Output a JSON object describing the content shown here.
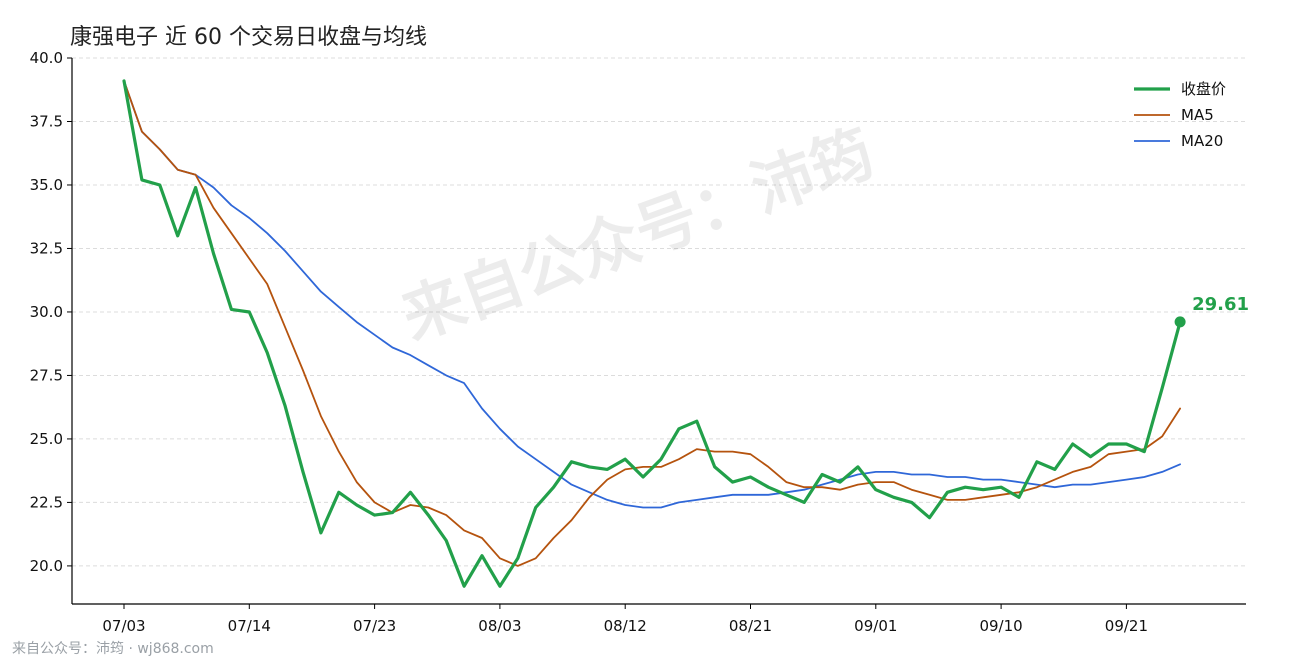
{
  "chart_data": {
    "type": "line",
    "title": "康强电子 近 60 个交易日收盘与均线",
    "xlabel": "",
    "ylabel": "",
    "ylim": [
      18.5,
      40.0
    ],
    "yticks": [
      20.0,
      22.5,
      25.0,
      27.5,
      30.0,
      32.5,
      35.0,
      37.5,
      40.0
    ],
    "ytick_labels": [
      "20.0",
      "22.5",
      "25.0",
      "27.5",
      "30.0",
      "32.5",
      "35.0",
      "37.5",
      "40.0"
    ],
    "xticks": [
      {
        "index": 0,
        "label": "07/03"
      },
      {
        "index": 7,
        "label": "07/14"
      },
      {
        "index": 14,
        "label": "07/23"
      },
      {
        "index": 21,
        "label": "08/03"
      },
      {
        "index": 28,
        "label": "08/12"
      },
      {
        "index": 35,
        "label": "08/21"
      },
      {
        "index": 42,
        "label": "09/01"
      },
      {
        "index": 49,
        "label": "09/10"
      },
      {
        "index": 56,
        "label": "09/21"
      }
    ],
    "grid": "horizontal-dashed",
    "legend_position": "top-right",
    "series": [
      {
        "name": "收盘价",
        "color": "#22a04a",
        "values": [
          39.1,
          35.2,
          35.0,
          33.0,
          34.9,
          32.3,
          30.1,
          30.0,
          28.4,
          26.3,
          23.7,
          21.3,
          22.9,
          22.4,
          22.0,
          22.1,
          22.9,
          22.0,
          21.0,
          19.2,
          20.4,
          19.2,
          20.3,
          22.3,
          23.1,
          24.1,
          23.9,
          23.8,
          24.2,
          23.5,
          24.2,
          25.4,
          25.7,
          23.9,
          23.3,
          23.5,
          23.1,
          22.8,
          22.5,
          23.6,
          23.3,
          23.9,
          23.0,
          22.7,
          22.5,
          21.9,
          22.9,
          23.1,
          23.0,
          23.1,
          22.7,
          24.1,
          23.8,
          24.8,
          24.3,
          24.8,
          24.8,
          24.5,
          27.0,
          29.61
        ]
      },
      {
        "name": "MA5",
        "color": "#b5530e",
        "values": [
          39.1,
          37.1,
          36.4,
          35.6,
          35.4,
          34.1,
          33.1,
          32.1,
          31.1,
          29.4,
          27.7,
          25.9,
          24.5,
          23.3,
          22.5,
          22.1,
          22.4,
          22.3,
          22.0,
          21.4,
          21.1,
          20.3,
          20.0,
          20.3,
          21.1,
          21.8,
          22.7,
          23.4,
          23.8,
          23.9,
          23.9,
          24.2,
          24.6,
          24.5,
          24.5,
          24.4,
          23.9,
          23.3,
          23.1,
          23.1,
          23.0,
          23.2,
          23.3,
          23.3,
          23.0,
          22.8,
          22.6,
          22.6,
          22.7,
          22.8,
          22.9,
          23.1,
          23.4,
          23.7,
          23.9,
          24.4,
          24.5,
          24.6,
          25.1,
          26.2
        ]
      },
      {
        "name": "MA20",
        "color": "#2f67d8",
        "values": [
          39.1,
          37.1,
          36.4,
          35.6,
          35.4,
          34.9,
          34.2,
          33.7,
          33.1,
          32.4,
          31.6,
          30.8,
          30.2,
          29.6,
          29.1,
          28.6,
          28.3,
          27.9,
          27.5,
          27.2,
          26.2,
          25.4,
          24.7,
          24.2,
          23.7,
          23.2,
          22.9,
          22.6,
          22.4,
          22.3,
          22.3,
          22.5,
          22.6,
          22.7,
          22.8,
          22.8,
          22.8,
          22.9,
          23.0,
          23.2,
          23.4,
          23.6,
          23.7,
          23.7,
          23.6,
          23.6,
          23.5,
          23.5,
          23.4,
          23.4,
          23.3,
          23.2,
          23.1,
          23.2,
          23.2,
          23.3,
          23.4,
          23.5,
          23.7,
          24.0
        ]
      }
    ],
    "annotations": [
      {
        "series": "收盘价",
        "index": 59,
        "text": "29.61"
      }
    ]
  },
  "watermark": "来自公众号：沛筠",
  "footer": "来自公众号：沛筠 · wj868.com"
}
